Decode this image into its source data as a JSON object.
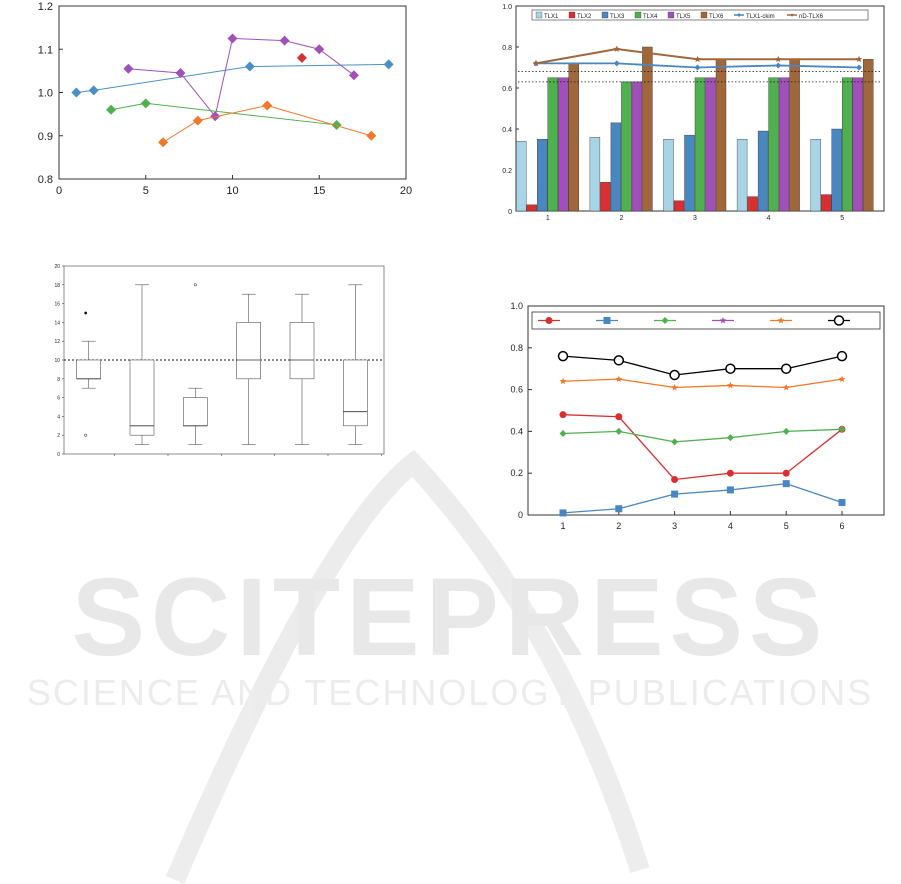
{
  "charts": [
    {
      "type": "scatter",
      "xticks": [
        "0",
        "5",
        "10",
        "15",
        "20"
      ],
      "yticks": [
        "0.8",
        "0.9",
        "1.0",
        "1.1",
        "1.2"
      ],
      "xlim": [
        0,
        20
      ],
      "ylim": [
        0.8,
        1.2
      ],
      "grid": false,
      "series": [
        {
          "color": "#4a90c4",
          "points": [
            [
              1,
              1.0
            ],
            [
              2,
              1.005
            ],
            [
              11,
              1.06
            ],
            [
              19,
              1.065
            ]
          ]
        },
        {
          "color": "#a050b8",
          "points": [
            [
              4,
              1.055
            ],
            [
              7,
              1.045
            ],
            [
              9,
              0.945
            ],
            [
              10,
              1.125
            ],
            [
              13,
              1.12
            ],
            [
              15,
              1.1
            ],
            [
              17,
              1.04
            ]
          ]
        },
        {
          "color": "#50b050",
          "points": [
            [
              3,
              0.96
            ],
            [
              5,
              0.975
            ],
            [
              16,
              0.925
            ]
          ]
        },
        {
          "color": "#f07828",
          "points": [
            [
              6,
              0.885
            ],
            [
              8,
              0.935
            ],
            [
              12,
              0.97
            ],
            [
              18,
              0.9
            ]
          ]
        },
        {
          "color": "#d83030",
          "points": [
            [
              14,
              1.08
            ]
          ]
        }
      ]
    },
    {
      "type": "bar",
      "yticks": [
        "0",
        "0.2",
        "0.4",
        "0.6",
        "0.8",
        "1.0"
      ],
      "ylim": [
        0,
        1.0
      ],
      "categories": [
        "1",
        "2",
        "3",
        "4",
        "5"
      ],
      "legend_position": "top",
      "series": [
        {
          "name": "TLX1",
          "color": "#a8d4e6",
          "values": [
            0.34,
            0.36,
            0.35,
            0.35,
            0.35
          ]
        },
        {
          "name": "TLX2",
          "color": "#d83030",
          "values": [
            0.03,
            0.14,
            0.05,
            0.07,
            0.08
          ]
        },
        {
          "name": "TLX3",
          "color": "#4a86c0",
          "values": [
            0.35,
            0.43,
            0.37,
            0.39,
            0.4
          ]
        },
        {
          "name": "TLX4",
          "color": "#50b050",
          "values": [
            0.65,
            0.63,
            0.65,
            0.65,
            0.65
          ]
        },
        {
          "name": "TLX5",
          "color": "#a050b8",
          "values": [
            0.65,
            0.63,
            0.65,
            0.65,
            0.65
          ]
        },
        {
          "name": "TLX6",
          "color": "#a0683a",
          "values": [
            0.72,
            0.8,
            0.74,
            0.74,
            0.74
          ]
        }
      ],
      "lines": [
        {
          "name": "TLX1-ckim",
          "color": "#4a86c0",
          "values": [
            0.72,
            0.72,
            0.7,
            0.71,
            0.7
          ]
        },
        {
          "name": "nD-TLX6",
          "color": "#a0683a",
          "values": [
            0.72,
            0.79,
            0.74,
            0.74,
            0.74
          ]
        }
      ],
      "hlines": [
        0.68,
        0.63
      ]
    },
    {
      "type": "box",
      "yticks": [
        "0",
        "2",
        "4",
        "6",
        "8",
        "10",
        "12",
        "14",
        "16",
        "18",
        "20"
      ],
      "ylim": [
        0,
        20
      ],
      "hline": 10,
      "boxes": [
        {
          "whisker_low": 7,
          "q1": 8,
          "median": 8,
          "q3": 10,
          "whisker_high": 12,
          "outliers": [
            15,
            2
          ]
        },
        {
          "whisker_low": 1,
          "q1": 2,
          "median": 3,
          "q3": 10,
          "whisker_high": 18,
          "outliers": []
        },
        {
          "whisker_low": 1,
          "q1": 3,
          "median": 3,
          "q3": 6,
          "whisker_high": 7,
          "outliers": [
            18
          ]
        },
        {
          "whisker_low": 1,
          "q1": 8,
          "median": 10,
          "q3": 14,
          "whisker_high": 17,
          "outliers": []
        },
        {
          "whisker_low": 1,
          "q1": 8,
          "median": 10,
          "q3": 14,
          "whisker_high": 17,
          "outliers": []
        },
        {
          "whisker_low": 1,
          "q1": 3,
          "median": 4.5,
          "q3": 10,
          "whisker_high": 18,
          "outliers": []
        }
      ]
    },
    {
      "type": "line",
      "yticks": [
        "0",
        "0.2",
        "0.4",
        "0.6",
        "0.8",
        "1.0"
      ],
      "ylim": [
        0,
        1.0
      ],
      "categories": [
        "1",
        "2",
        "3",
        "4",
        "5",
        "6"
      ],
      "legend_position": "top",
      "series": [
        {
          "color": "#d83030",
          "marker": "circle",
          "values": [
            0.48,
            0.47,
            0.17,
            0.2,
            0.2,
            0.41
          ]
        },
        {
          "color": "#4a86c0",
          "marker": "square",
          "values": [
            0.01,
            0.03,
            0.1,
            0.12,
            0.15,
            0.06
          ]
        },
        {
          "color": "#50b050",
          "marker": "diamond",
          "values": [
            0.39,
            0.4,
            0.35,
            0.37,
            0.4,
            0.41
          ]
        },
        {
          "color": "#a050b8",
          "marker": "star",
          "values": []
        },
        {
          "color": "#f07828",
          "marker": "star",
          "values": [
            0.64,
            0.65,
            0.61,
            0.62,
            0.61,
            0.65
          ]
        },
        {
          "color": "#000000",
          "marker": "open-circle",
          "values": [
            0.76,
            0.74,
            0.67,
            0.7,
            0.7,
            0.76
          ]
        }
      ]
    }
  ],
  "watermark": {
    "title": "SCITEPRESS",
    "subtitle": "SCIENCE AND TECHNOLOGY PUBLICATIONS"
  }
}
